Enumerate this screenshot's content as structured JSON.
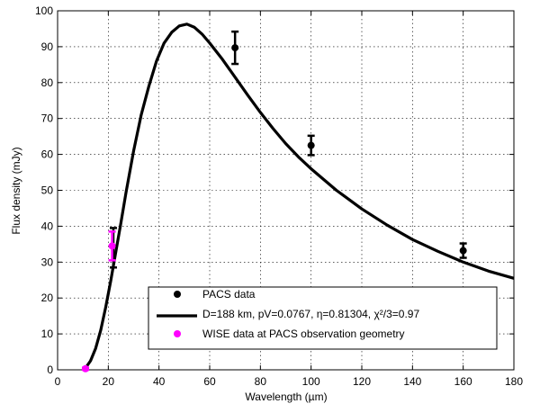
{
  "chart_data": {
    "type": "scatter",
    "title": "",
    "xlabel": "Wavelength (µm)",
    "ylabel": "Flux density (mJy)",
    "xlim": [
      0,
      180
    ],
    "ylim": [
      0,
      100
    ],
    "xticks": [
      "0",
      "20",
      "40",
      "60",
      "80",
      "100",
      "120",
      "140",
      "160",
      "180"
    ],
    "yticks": [
      "0",
      "10",
      "20",
      "30",
      "40",
      "50",
      "60",
      "70",
      "80",
      "90",
      "100"
    ],
    "grid": true,
    "legend_position": "bottom-center",
    "series": [
      {
        "name": "PACS data",
        "kind": "points",
        "color": "#000000",
        "points": [
          {
            "x": 70,
            "y": 89.7,
            "err": 4.5
          },
          {
            "x": 100,
            "y": 62.5,
            "err": 2.7
          },
          {
            "x": 160,
            "y": 33.2,
            "err": 2.0
          }
        ]
      },
      {
        "name": "D=188 km, pV=0.0767, η=0.81304, χ²/3=0.97",
        "kind": "line",
        "color": "#000000",
        "x": [
          11,
          13,
          15,
          17,
          19,
          21,
          23,
          25,
          27,
          30,
          33,
          36,
          39,
          42,
          45,
          48,
          51,
          54,
          57,
          60,
          65,
          70,
          75,
          80,
          85,
          90,
          95,
          100,
          110,
          120,
          130,
          140,
          150,
          160,
          170,
          180
        ],
        "values": [
          0.5,
          2.5,
          6,
          11,
          17.5,
          25,
          33,
          41,
          49.5,
          61,
          71,
          79,
          86,
          91,
          94,
          95.8,
          96.3,
          95.4,
          93.5,
          91,
          86.5,
          81.5,
          76.5,
          71.7,
          67.2,
          63,
          59.3,
          56,
          50,
          44.8,
          40.3,
          36.3,
          33,
          30,
          27.5,
          25.5
        ]
      },
      {
        "name": "WISE data at PACS observation geometry",
        "kind": "points",
        "color": "#ff00ff",
        "points": [
          {
            "x": 11,
            "y": 0.3,
            "err": 0.3
          },
          {
            "x": 21.5,
            "y": 34.5,
            "err": 4
          }
        ]
      }
    ],
    "extra_errorbars": [
      {
        "x": 22,
        "y": 34,
        "err": 5.5,
        "color": "#000000"
      }
    ]
  }
}
